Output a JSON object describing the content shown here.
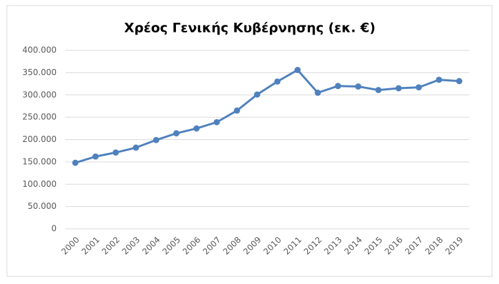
{
  "chart_data": {
    "type": "line",
    "title": "Χρέος Γενικής Κυβέρνησης (εκ. €)",
    "categories": [
      "2000",
      "2001",
      "2002",
      "2003",
      "2004",
      "2005",
      "2006",
      "2007",
      "2008",
      "2009",
      "2010",
      "2011",
      "2012",
      "2013",
      "2014",
      "2015",
      "2016",
      "2017",
      "2018",
      "2019"
    ],
    "series": [
      {
        "name": "Χρέος",
        "color": "#4f81bd",
        "values": [
          148000,
          162000,
          171000,
          182000,
          199000,
          214000,
          225000,
          239000,
          265000,
          301000,
          330000,
          356000,
          305000,
          320000,
          319000,
          311000,
          315000,
          317000,
          334000,
          331000
        ]
      }
    ],
    "ylim": [
      0,
      400000
    ],
    "yticks": [
      0,
      {
        "value": 50000,
        "label": "50.000"
      },
      {
        "value": 100000,
        "label": "100.000"
      },
      {
        "value": 150000,
        "label": "150.000"
      },
      {
        "value": 200000,
        "label": "200.000"
      },
      {
        "value": 250000,
        "label": "250.000"
      },
      {
        "value": 300000,
        "label": "300.000"
      },
      {
        "value": 350000,
        "label": "350.000"
      },
      {
        "value": 400000,
        "label": "400.000"
      }
    ],
    "grid": true
  }
}
